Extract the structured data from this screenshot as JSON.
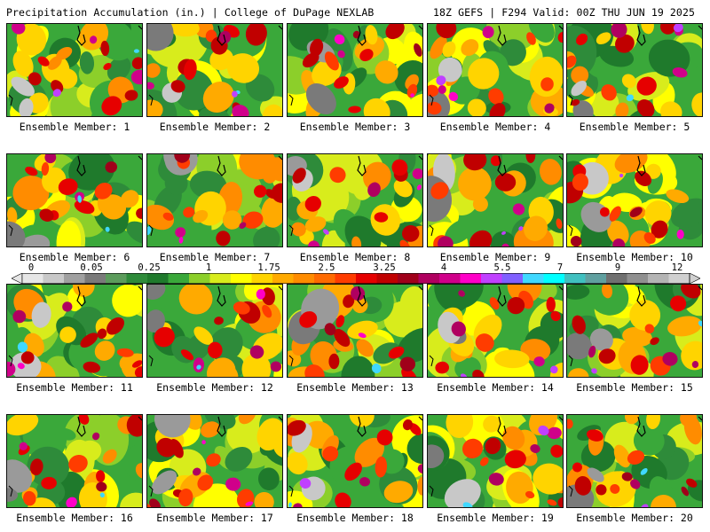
{
  "header": {
    "title_left": "Precipitation Accumulation (in.) | College of DuPage NEXLAB",
    "title_right": "18Z GEFS | F294 Valid: 00Z THU JUN 19 2025"
  },
  "colorbar": {
    "tick_labels": [
      "0",
      "0.05",
      "0.25",
      "1",
      "1.75",
      "2.5",
      "3.25",
      "4",
      "5.5",
      "7",
      "9",
      "12"
    ],
    "colors": [
      "#e6e6e6",
      "#c8c8c8",
      "#a0a0a0",
      "#7a7a7a",
      "#5c9c5c",
      "#2e8b3a",
      "#1f7a2c",
      "#3aa83a",
      "#8ccf2a",
      "#d8ec1c",
      "#ffff00",
      "#ffd400",
      "#ffaa00",
      "#ff8c00",
      "#ff6a00",
      "#ff3c00",
      "#e60000",
      "#c00000",
      "#a0001a",
      "#b00060",
      "#d0008a",
      "#ff00c8",
      "#c040ff",
      "#8060ff",
      "#40d8ff",
      "#00ffff",
      "#40c0c0",
      "#60a0a0",
      "#707070",
      "#909090",
      "#b4b4b4",
      "#d0d0d0"
    ]
  },
  "members": [
    {
      "label": "Ensemble Member: 1"
    },
    {
      "label": "Ensemble Member: 2"
    },
    {
      "label": "Ensemble Member: 3"
    },
    {
      "label": "Ensemble Member: 4"
    },
    {
      "label": "Ensemble Member: 5"
    },
    {
      "label": "Ensemble Member: 6"
    },
    {
      "label": "Ensemble Member: 7"
    },
    {
      "label": "Ensemble Member: 8"
    },
    {
      "label": "Ensemble Member: 9"
    },
    {
      "label": "Ensemble Member: 10"
    },
    {
      "label": "Ensemble Member: 11"
    },
    {
      "label": "Ensemble Member: 12"
    },
    {
      "label": "Ensemble Member: 13"
    },
    {
      "label": "Ensemble Member: 14"
    },
    {
      "label": "Ensemble Member: 15"
    },
    {
      "label": "Ensemble Member: 16"
    },
    {
      "label": "Ensemble Member: 17"
    },
    {
      "label": "Ensemble Member: 18"
    },
    {
      "label": "Ensemble Member: 19"
    },
    {
      "label": "Ensemble Member: 20"
    }
  ]
}
